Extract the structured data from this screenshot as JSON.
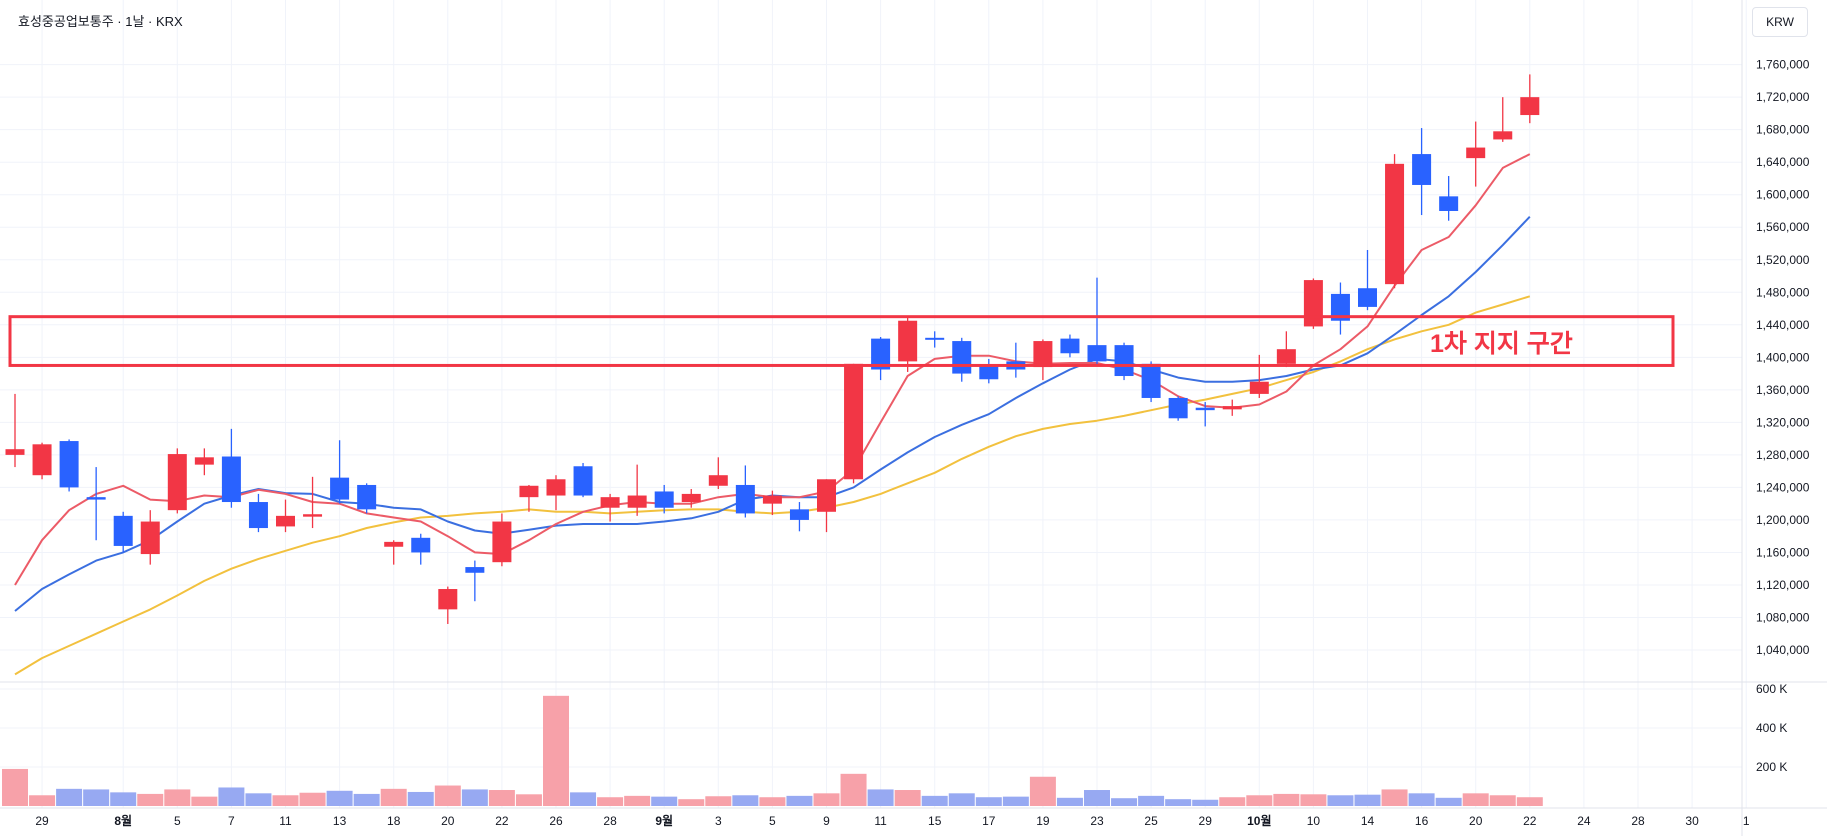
{
  "header": {
    "title": "효성중공업보통주 · 1날 · KRX",
    "currency": "KRW"
  },
  "annotation": {
    "label": "1차 지지 구간",
    "zone_low": 1390000,
    "zone_high": 1450000,
    "color": "#f23645"
  },
  "colors": {
    "up": "#f23645",
    "down": "#2962ff",
    "up_volume": "#f7a1a9",
    "down_volume": "#97a9f2",
    "ma5": "#ec5b67",
    "ma10": "#3b6fe0",
    "ma20": "#f2c13e"
  },
  "chart_data": {
    "type": "candlestick",
    "price_axis": {
      "ticks": [
        1040000,
        1080000,
        1120000,
        1160000,
        1200000,
        1240000,
        1280000,
        1320000,
        1360000,
        1400000,
        1440000,
        1480000,
        1520000,
        1560000,
        1600000,
        1640000,
        1680000,
        1720000,
        1760000
      ],
      "tick_labels": [
        "1,040,000",
        "1,080,000",
        "1,120,000",
        "1,160,000",
        "1,200,000",
        "1,240,000",
        "1,280,000",
        "1,320,000",
        "1,360,000",
        "1,400,000",
        "1,440,000",
        "1,480,000",
        "1,520,000",
        "1,560,000",
        "1,600,000",
        "1,640,000",
        "1,680,000",
        "1,720,000",
        "1,760,000"
      ]
    },
    "volume_axis": {
      "ticks": [
        200000,
        400000,
        600000
      ],
      "tick_labels": [
        "200 K",
        "400 K",
        "600 K"
      ]
    },
    "x_axis": {
      "ticks": [
        {
          "i": 1,
          "label": "29"
        },
        {
          "i": 4,
          "label": "8월"
        },
        {
          "i": 6,
          "label": "5"
        },
        {
          "i": 8,
          "label": "7"
        },
        {
          "i": 10,
          "label": "11"
        },
        {
          "i": 12,
          "label": "13"
        },
        {
          "i": 14,
          "label": "18"
        },
        {
          "i": 16,
          "label": "20"
        },
        {
          "i": 18,
          "label": "22"
        },
        {
          "i": 20,
          "label": "26"
        },
        {
          "i": 22,
          "label": "28"
        },
        {
          "i": 24,
          "label": "9월"
        },
        {
          "i": 26,
          "label": "3"
        },
        {
          "i": 28,
          "label": "5"
        },
        {
          "i": 30,
          "label": "9"
        },
        {
          "i": 32,
          "label": "11"
        },
        {
          "i": 34,
          "label": "15"
        },
        {
          "i": 36,
          "label": "17"
        },
        {
          "i": 38,
          "label": "19"
        },
        {
          "i": 40,
          "label": "23"
        },
        {
          "i": 42,
          "label": "25"
        },
        {
          "i": 44,
          "label": "29"
        },
        {
          "i": 46,
          "label": "10월"
        },
        {
          "i": 48,
          "label": "10"
        },
        {
          "i": 50,
          "label": "14"
        },
        {
          "i": 52,
          "label": "16"
        },
        {
          "i": 54,
          "label": "20"
        },
        {
          "i": 56,
          "label": "22"
        },
        {
          "i": 58,
          "label": "24"
        },
        {
          "i": 60,
          "label": "28"
        },
        {
          "i": 62,
          "label": "30"
        },
        {
          "i": 64,
          "label": "1"
        }
      ]
    },
    "candles": [
      {
        "o": 1280000,
        "h": 1355000,
        "l": 1265000,
        "c": 1287000,
        "v": 190000
      },
      {
        "o": 1255000,
        "h": 1295000,
        "l": 1250000,
        "c": 1293000,
        "v": 55000
      },
      {
        "o": 1297000,
        "h": 1299000,
        "l": 1235000,
        "c": 1240000,
        "v": 88000
      },
      {
        "o": 1228000,
        "h": 1265000,
        "l": 1175000,
        "c": 1225000,
        "v": 85000
      },
      {
        "o": 1205000,
        "h": 1210000,
        "l": 1160000,
        "c": 1168000,
        "v": 70000
      },
      {
        "o": 1158000,
        "h": 1212000,
        "l": 1145000,
        "c": 1198000,
        "v": 62000
      },
      {
        "o": 1212000,
        "h": 1288000,
        "l": 1208000,
        "c": 1281000,
        "v": 85000
      },
      {
        "o": 1268000,
        "h": 1288000,
        "l": 1255000,
        "c": 1277000,
        "v": 48000
      },
      {
        "o": 1278000,
        "h": 1312000,
        "l": 1215000,
        "c": 1222000,
        "v": 95000
      },
      {
        "o": 1222000,
        "h": 1232000,
        "l": 1185000,
        "c": 1190000,
        "v": 65000
      },
      {
        "o": 1192000,
        "h": 1225000,
        "l": 1185000,
        "c": 1205000,
        "v": 55000
      },
      {
        "o": 1204000,
        "h": 1253000,
        "l": 1190000,
        "c": 1207000,
        "v": 68000
      },
      {
        "o": 1252000,
        "h": 1298000,
        "l": 1220000,
        "c": 1225000,
        "v": 78000
      },
      {
        "o": 1243000,
        "h": 1245000,
        "l": 1208000,
        "c": 1213000,
        "v": 62000
      },
      {
        "o": 1167000,
        "h": 1175000,
        "l": 1145000,
        "c": 1173000,
        "v": 88000
      },
      {
        "o": 1178000,
        "h": 1183000,
        "l": 1145000,
        "c": 1160000,
        "v": 72000
      },
      {
        "o": 1090000,
        "h": 1118000,
        "l": 1072000,
        "c": 1115000,
        "v": 105000
      },
      {
        "o": 1142000,
        "h": 1150000,
        "l": 1100000,
        "c": 1135000,
        "v": 85000
      },
      {
        "o": 1148000,
        "h": 1208000,
        "l": 1143000,
        "c": 1198000,
        "v": 82000
      },
      {
        "o": 1228000,
        "h": 1243000,
        "l": 1210000,
        "c": 1242000,
        "v": 60000
      },
      {
        "o": 1230000,
        "h": 1255000,
        "l": 1212000,
        "c": 1250000,
        "v": 565000
      },
      {
        "o": 1266000,
        "h": 1270000,
        "l": 1228000,
        "c": 1230000,
        "v": 70000
      },
      {
        "o": 1215000,
        "h": 1232000,
        "l": 1198000,
        "c": 1228000,
        "v": 45000
      },
      {
        "o": 1215000,
        "h": 1268000,
        "l": 1205000,
        "c": 1230000,
        "v": 52000
      },
      {
        "o": 1235000,
        "h": 1243000,
        "l": 1208000,
        "c": 1215000,
        "v": 48000
      },
      {
        "o": 1222000,
        "h": 1238000,
        "l": 1215000,
        "c": 1232000,
        "v": 35000
      },
      {
        "o": 1242000,
        "h": 1277000,
        "l": 1238000,
        "c": 1255000,
        "v": 50000
      },
      {
        "o": 1243000,
        "h": 1267000,
        "l": 1203000,
        "c": 1208000,
        "v": 55000
      },
      {
        "o": 1220000,
        "h": 1236000,
        "l": 1206000,
        "c": 1230000,
        "v": 45000
      },
      {
        "o": 1213000,
        "h": 1222000,
        "l": 1186000,
        "c": 1200000,
        "v": 52000
      },
      {
        "o": 1210000,
        "h": 1250000,
        "l": 1185000,
        "c": 1250000,
        "v": 65000
      },
      {
        "o": 1250000,
        "h": 1392000,
        "l": 1245000,
        "c": 1392000,
        "v": 165000
      },
      {
        "o": 1423000,
        "h": 1425000,
        "l": 1372000,
        "c": 1385000,
        "v": 85000
      },
      {
        "o": 1395000,
        "h": 1450000,
        "l": 1382000,
        "c": 1445000,
        "v": 82000
      },
      {
        "o": 1424000,
        "h": 1432000,
        "l": 1412000,
        "c": 1422000,
        "v": 52000
      },
      {
        "o": 1420000,
        "h": 1424000,
        "l": 1370000,
        "c": 1380000,
        "v": 65000
      },
      {
        "o": 1390000,
        "h": 1398000,
        "l": 1368000,
        "c": 1373000,
        "v": 45000
      },
      {
        "o": 1395000,
        "h": 1418000,
        "l": 1375000,
        "c": 1385000,
        "v": 48000
      },
      {
        "o": 1388000,
        "h": 1422000,
        "l": 1372000,
        "c": 1420000,
        "v": 150000
      },
      {
        "o": 1423000,
        "h": 1428000,
        "l": 1400000,
        "c": 1405000,
        "v": 42000
      },
      {
        "o": 1415000,
        "h": 1498000,
        "l": 1390000,
        "c": 1395000,
        "v": 82000
      },
      {
        "o": 1415000,
        "h": 1418000,
        "l": 1372000,
        "c": 1377000,
        "v": 40000
      },
      {
        "o": 1392000,
        "h": 1395000,
        "l": 1345000,
        "c": 1350000,
        "v": 52000
      },
      {
        "o": 1350000,
        "h": 1352000,
        "l": 1322000,
        "c": 1325000,
        "v": 35000
      },
      {
        "o": 1338000,
        "h": 1345000,
        "l": 1315000,
        "c": 1335000,
        "v": 32000
      },
      {
        "o": 1336000,
        "h": 1348000,
        "l": 1328000,
        "c": 1340000,
        "v": 45000
      },
      {
        "o": 1355000,
        "h": 1403000,
        "l": 1350000,
        "c": 1370000,
        "v": 55000
      },
      {
        "o": 1392000,
        "h": 1432000,
        "l": 1388000,
        "c": 1410000,
        "v": 62000
      },
      {
        "o": 1438000,
        "h": 1497000,
        "l": 1435000,
        "c": 1495000,
        "v": 60000
      },
      {
        "o": 1478000,
        "h": 1492000,
        "l": 1428000,
        "c": 1445000,
        "v": 55000
      },
      {
        "o": 1485000,
        "h": 1532000,
        "l": 1458000,
        "c": 1462000,
        "v": 58000
      },
      {
        "o": 1490000,
        "h": 1650000,
        "l": 1485000,
        "c": 1638000,
        "v": 85000
      },
      {
        "o": 1650000,
        "h": 1682000,
        "l": 1575000,
        "c": 1612000,
        "v": 65000
      },
      {
        "o": 1598000,
        "h": 1623000,
        "l": 1568000,
        "c": 1580000,
        "v": 42000
      },
      {
        "o": 1645000,
        "h": 1690000,
        "l": 1610000,
        "c": 1658000,
        "v": 65000
      },
      {
        "o": 1668000,
        "h": 1720000,
        "l": 1665000,
        "c": 1678000,
        "v": 55000
      },
      {
        "o": 1698000,
        "h": 1748000,
        "l": 1688000,
        "c": 1720000,
        "v": 45000
      }
    ],
    "ma5": [
      1120000,
      1175000,
      1212000,
      1232000,
      1242000,
      1225000,
      1223000,
      1230000,
      1228000,
      1237000,
      1232000,
      1222000,
      1220000,
      1208000,
      1203000,
      1198000,
      1180000,
      1160000,
      1158000,
      1175000,
      1195000,
      1210000,
      1218000,
      1222000,
      1220000,
      1220000,
      1228000,
      1232000,
      1228000,
      1228000,
      1235000,
      1262000,
      1320000,
      1377000,
      1398000,
      1402000,
      1402000,
      1395000,
      1392000,
      1393000,
      1393000,
      1385000,
      1372000,
      1352000,
      1340000,
      1338000,
      1342000,
      1358000,
      1390000,
      1410000,
      1438000,
      1488000,
      1532000,
      1548000,
      1587000,
      1633000,
      1650000
    ],
    "ma10": [
      1088000,
      1115000,
      1133000,
      1150000,
      1160000,
      1175000,
      1198000,
      1220000,
      1230000,
      1238000,
      1233000,
      1232000,
      1222000,
      1220000,
      1215000,
      1213000,
      1198000,
      1187000,
      1183000,
      1188000,
      1193000,
      1195000,
      1195000,
      1195000,
      1198000,
      1202000,
      1210000,
      1225000,
      1230000,
      1228000,
      1228000,
      1240000,
      1262000,
      1283000,
      1302000,
      1317000,
      1330000,
      1350000,
      1368000,
      1385000,
      1398000,
      1395000,
      1385000,
      1375000,
      1370000,
      1370000,
      1372000,
      1377000,
      1385000,
      1390000,
      1405000,
      1428000,
      1452000,
      1475000,
      1505000,
      1538000,
      1573000
    ],
    "ma20": [
      1010000,
      1030000,
      1045000,
      1060000,
      1075000,
      1090000,
      1107000,
      1125000,
      1140000,
      1152000,
      1162000,
      1172000,
      1180000,
      1190000,
      1197000,
      1203000,
      1205000,
      1208000,
      1210000,
      1213000,
      1210000,
      1210000,
      1208000,
      1210000,
      1212000,
      1213000,
      1213000,
      1210000,
      1208000,
      1210000,
      1215000,
      1222000,
      1232000,
      1245000,
      1258000,
      1275000,
      1290000,
      1303000,
      1312000,
      1318000,
      1322000,
      1328000,
      1335000,
      1342000,
      1348000,
      1355000,
      1362000,
      1372000,
      1382000,
      1395000,
      1410000,
      1422000,
      1432000,
      1440000,
      1455000,
      1465000,
      1475000
    ]
  }
}
